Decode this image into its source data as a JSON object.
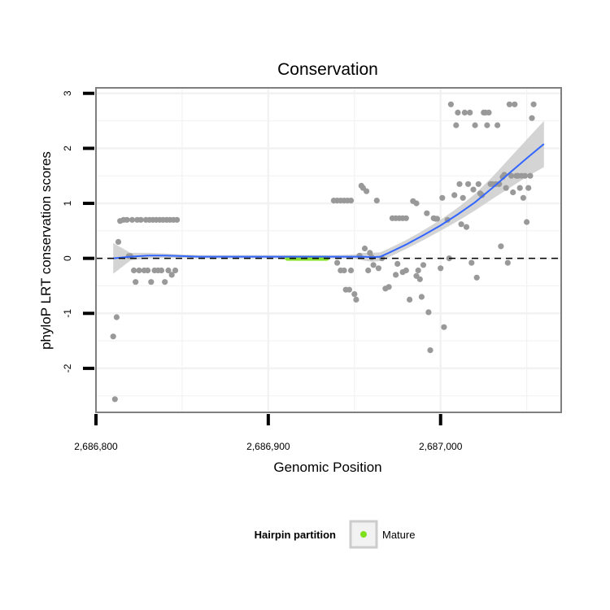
{
  "chart_data": {
    "type": "scatter",
    "title": "Conservation",
    "xlabel": "Genomic Position",
    "ylabel": "phyloP LRT conservation scores",
    "xlim": [
      2686800,
      2687070
    ],
    "ylim": [
      -2.8,
      3.1
    ],
    "x_ticks": [
      {
        "value": 2686800,
        "label": "2,686,800"
      },
      {
        "value": 2686900,
        "label": "2,686,900"
      },
      {
        "value": 2687000,
        "label": "2,687,000"
      }
    ],
    "y_ticks": [
      {
        "value": -2,
        "label": "-2"
      },
      {
        "value": -1,
        "label": "-1"
      },
      {
        "value": 0,
        "label": "0"
      },
      {
        "value": 1,
        "label": "1"
      },
      {
        "value": 2,
        "label": "2"
      },
      {
        "value": 3,
        "label": "3"
      }
    ],
    "reference_line": {
      "y": 0,
      "style": "dashed"
    },
    "grid": true,
    "legend": {
      "title": "Hairpin partition",
      "position": "bottom",
      "items": [
        {
          "label": "Mature",
          "color": "#7ee01a"
        }
      ]
    },
    "colors": {
      "points": "#999999",
      "smooth_line": "#3366ff",
      "ribbon": "#cccccc",
      "mature": "#7ee01a",
      "panel_border": "#7f7f7f",
      "grid": "#f2f2f2"
    },
    "mature_region": {
      "x_start": 2686911,
      "x_end": 2686934,
      "y": 0
    },
    "smooth": {
      "x": [
        2686810,
        2686820,
        2686830,
        2686840,
        2686850,
        2686860,
        2686870,
        2686880,
        2686890,
        2686900,
        2686910,
        2686920,
        2686930,
        2686940,
        2686950,
        2686955,
        2686960,
        2686965,
        2686970,
        2686980,
        2686990,
        2687000,
        2687010,
        2687020,
        2687030,
        2687040,
        2687050,
        2687060
      ],
      "y": [
        0.0,
        0.03,
        0.05,
        0.05,
        0.04,
        0.03,
        0.03,
        0.03,
        0.03,
        0.03,
        0.03,
        0.03,
        0.03,
        0.03,
        0.03,
        0.03,
        0.02,
        0.03,
        0.1,
        0.25,
        0.42,
        0.6,
        0.8,
        1.02,
        1.28,
        1.55,
        1.82,
        2.08
      ],
      "lower": [
        -0.28,
        -0.04,
        0.0,
        0.01,
        0.01,
        0.0,
        0.0,
        0.0,
        0.0,
        0.0,
        0.0,
        0.0,
        0.0,
        0.0,
        -0.01,
        -0.04,
        -0.06,
        -0.05,
        0.02,
        0.17,
        0.33,
        0.5,
        0.68,
        0.87,
        1.08,
        1.28,
        1.48,
        1.66
      ],
      "upper": [
        0.28,
        0.1,
        0.1,
        0.09,
        0.07,
        0.06,
        0.06,
        0.06,
        0.06,
        0.06,
        0.06,
        0.06,
        0.06,
        0.06,
        0.07,
        0.1,
        0.1,
        0.11,
        0.18,
        0.33,
        0.51,
        0.7,
        0.92,
        1.17,
        1.48,
        1.82,
        2.16,
        2.5
      ]
    },
    "points": [
      {
        "x": 2686810,
        "y": -1.42
      },
      {
        "x": 2686811,
        "y": -2.56
      },
      {
        "x": 2686812,
        "y": -1.07
      },
      {
        "x": 2686813,
        "y": 0.3
      },
      {
        "x": 2686814,
        "y": 0.68
      },
      {
        "x": 2686816,
        "y": 0.7
      },
      {
        "x": 2686818,
        "y": 0.7
      },
      {
        "x": 2686819,
        "y": 0.04
      },
      {
        "x": 2686820,
        "y": 0.04
      },
      {
        "x": 2686821,
        "y": 0.7
      },
      {
        "x": 2686822,
        "y": -0.22
      },
      {
        "x": 2686823,
        "y": -0.43
      },
      {
        "x": 2686824,
        "y": 0.7
      },
      {
        "x": 2686825,
        "y": -0.22
      },
      {
        "x": 2686826,
        "y": 0.7
      },
      {
        "x": 2686828,
        "y": -0.22
      },
      {
        "x": 2686829,
        "y": 0.7
      },
      {
        "x": 2686830,
        "y": -0.22
      },
      {
        "x": 2686831,
        "y": 0.7
      },
      {
        "x": 2686832,
        "y": -0.43
      },
      {
        "x": 2686833,
        "y": 0.7
      },
      {
        "x": 2686834,
        "y": -0.22
      },
      {
        "x": 2686835,
        "y": 0.7
      },
      {
        "x": 2686836,
        "y": -0.22
      },
      {
        "x": 2686837,
        "y": 0.7
      },
      {
        "x": 2686838,
        "y": -0.22
      },
      {
        "x": 2686839,
        "y": 0.7
      },
      {
        "x": 2686840,
        "y": -0.43
      },
      {
        "x": 2686841,
        "y": 0.7
      },
      {
        "x": 2686842,
        "y": -0.22
      },
      {
        "x": 2686843,
        "y": 0.7
      },
      {
        "x": 2686844,
        "y": -0.3
      },
      {
        "x": 2686845,
        "y": 0.7
      },
      {
        "x": 2686846,
        "y": -0.22
      },
      {
        "x": 2686847,
        "y": 0.7
      },
      {
        "x": 2686938,
        "y": 1.05
      },
      {
        "x": 2686940,
        "y": 1.05
      },
      {
        "x": 2686942,
        "y": 1.05
      },
      {
        "x": 2686944,
        "y": 1.05
      },
      {
        "x": 2686946,
        "y": 1.05
      },
      {
        "x": 2686948,
        "y": 1.05
      },
      {
        "x": 2686940,
        "y": -0.08
      },
      {
        "x": 2686942,
        "y": -0.22
      },
      {
        "x": 2686944,
        "y": -0.22
      },
      {
        "x": 2686945,
        "y": -0.57
      },
      {
        "x": 2686947,
        "y": -0.57
      },
      {
        "x": 2686948,
        "y": -0.22
      },
      {
        "x": 2686950,
        "y": -0.65
      },
      {
        "x": 2686951,
        "y": -0.75
      },
      {
        "x": 2686953,
        "y": 0.05
      },
      {
        "x": 2686954,
        "y": 1.32
      },
      {
        "x": 2686955,
        "y": 1.28
      },
      {
        "x": 2686956,
        "y": 0.18
      },
      {
        "x": 2686957,
        "y": 1.22
      },
      {
        "x": 2686958,
        "y": -0.22
      },
      {
        "x": 2686959,
        "y": 0.1
      },
      {
        "x": 2686960,
        "y": 0.02
      },
      {
        "x": 2686961,
        "y": -0.12
      },
      {
        "x": 2686963,
        "y": 1.05
      },
      {
        "x": 2686964,
        "y": -0.18
      },
      {
        "x": 2686966,
        "y": 0.0
      },
      {
        "x": 2686968,
        "y": -0.55
      },
      {
        "x": 2686970,
        "y": -0.52
      },
      {
        "x": 2686972,
        "y": 0.73
      },
      {
        "x": 2686974,
        "y": 0.73
      },
      {
        "x": 2686976,
        "y": 0.73
      },
      {
        "x": 2686978,
        "y": 0.73
      },
      {
        "x": 2686980,
        "y": 0.73
      },
      {
        "x": 2686974,
        "y": -0.3
      },
      {
        "x": 2686975,
        "y": -0.1
      },
      {
        "x": 2686978,
        "y": -0.25
      },
      {
        "x": 2686980,
        "y": -0.22
      },
      {
        "x": 2686982,
        "y": -0.75
      },
      {
        "x": 2686984,
        "y": 1.04
      },
      {
        "x": 2686986,
        "y": 1.0
      },
      {
        "x": 2686986,
        "y": -0.32
      },
      {
        "x": 2686987,
        "y": -0.22
      },
      {
        "x": 2686988,
        "y": -0.38
      },
      {
        "x": 2686989,
        "y": -0.7
      },
      {
        "x": 2686990,
        "y": -0.12
      },
      {
        "x": 2686992,
        "y": 0.82
      },
      {
        "x": 2686993,
        "y": -0.98
      },
      {
        "x": 2686994,
        "y": -1.67
      },
      {
        "x": 2686996,
        "y": 0.73
      },
      {
        "x": 2686997,
        "y": 0.72
      },
      {
        "x": 2686998,
        "y": 0.72
      },
      {
        "x": 2687000,
        "y": -0.18
      },
      {
        "x": 2687001,
        "y": 1.1
      },
      {
        "x": 2687002,
        "y": -1.25
      },
      {
        "x": 2687004,
        "y": 0.7
      },
      {
        "x": 2687005,
        "y": 0.0
      },
      {
        "x": 2687006,
        "y": 2.8
      },
      {
        "x": 2687008,
        "y": 1.15
      },
      {
        "x": 2687009,
        "y": 2.42
      },
      {
        "x": 2687010,
        "y": 2.65
      },
      {
        "x": 2687011,
        "y": 1.35
      },
      {
        "x": 2687012,
        "y": 0.62
      },
      {
        "x": 2687013,
        "y": 1.1
      },
      {
        "x": 2687014,
        "y": 2.65
      },
      {
        "x": 2687015,
        "y": 0.57
      },
      {
        "x": 2687016,
        "y": 1.35
      },
      {
        "x": 2687017,
        "y": 2.65
      },
      {
        "x": 2687018,
        "y": -0.08
      },
      {
        "x": 2687019,
        "y": 1.25
      },
      {
        "x": 2687020,
        "y": 2.42
      },
      {
        "x": 2687021,
        "y": -0.35
      },
      {
        "x": 2687022,
        "y": 1.35
      },
      {
        "x": 2687023,
        "y": 1.18
      },
      {
        "x": 2687024,
        "y": 1.15
      },
      {
        "x": 2687025,
        "y": 2.65
      },
      {
        "x": 2687026,
        "y": 2.65
      },
      {
        "x": 2687027,
        "y": 2.42
      },
      {
        "x": 2687028,
        "y": 2.65
      },
      {
        "x": 2687029,
        "y": 1.35
      },
      {
        "x": 2687030,
        "y": 1.35
      },
      {
        "x": 2687032,
        "y": 1.35
      },
      {
        "x": 2687033,
        "y": 2.42
      },
      {
        "x": 2687034,
        "y": 1.35
      },
      {
        "x": 2687035,
        "y": 0.22
      },
      {
        "x": 2687036,
        "y": 1.48
      },
      {
        "x": 2687037,
        "y": 1.52
      },
      {
        "x": 2687038,
        "y": 1.28
      },
      {
        "x": 2687039,
        "y": -0.08
      },
      {
        "x": 2687040,
        "y": 2.8
      },
      {
        "x": 2687041,
        "y": 1.5
      },
      {
        "x": 2687042,
        "y": 1.2
      },
      {
        "x": 2687043,
        "y": 2.8
      },
      {
        "x": 2687044,
        "y": 1.5
      },
      {
        "x": 2687045,
        "y": 1.5
      },
      {
        "x": 2687046,
        "y": 1.28
      },
      {
        "x": 2687047,
        "y": 1.5
      },
      {
        "x": 2687048,
        "y": 1.1
      },
      {
        "x": 2687049,
        "y": 1.5
      },
      {
        "x": 2687050,
        "y": 0.66
      },
      {
        "x": 2687051,
        "y": 1.28
      },
      {
        "x": 2687052,
        "y": 1.5
      },
      {
        "x": 2687053,
        "y": 2.55
      },
      {
        "x": 2687054,
        "y": 2.8
      }
    ]
  }
}
